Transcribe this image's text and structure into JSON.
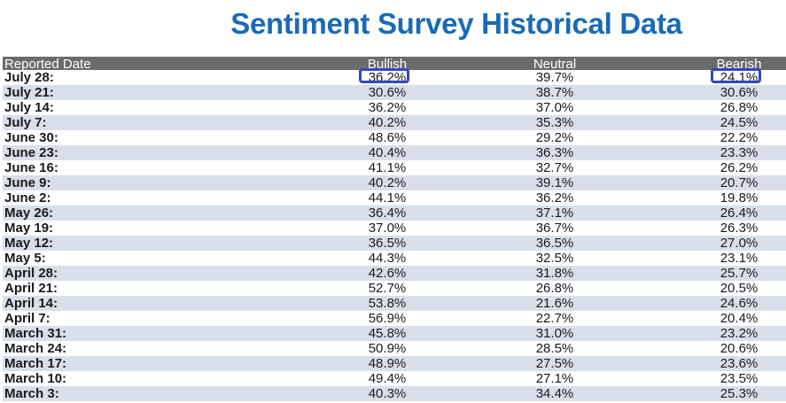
{
  "chart_data": {
    "type": "table",
    "title": "Sentiment Survey Historical Data",
    "columns": [
      "Reported Date",
      "Bullish",
      "Neutral",
      "Bearish"
    ],
    "rows": [
      {
        "date": "July 28:",
        "bullish": "36.2%",
        "neutral": "39.7%",
        "bearish": "24.1%"
      },
      {
        "date": "July 21:",
        "bullish": "30.6%",
        "neutral": "38.7%",
        "bearish": "30.6%"
      },
      {
        "date": "July 14:",
        "bullish": "36.2%",
        "neutral": "37.0%",
        "bearish": "26.8%"
      },
      {
        "date": "July 7:",
        "bullish": "40.2%",
        "neutral": "35.3%",
        "bearish": "24.5%"
      },
      {
        "date": "June 30:",
        "bullish": "48.6%",
        "neutral": "29.2%",
        "bearish": "22.2%"
      },
      {
        "date": "June 23:",
        "bullish": "40.4%",
        "neutral": "36.3%",
        "bearish": "23.3%"
      },
      {
        "date": "June 16:",
        "bullish": "41.1%",
        "neutral": "32.7%",
        "bearish": "26.2%"
      },
      {
        "date": "June 9:",
        "bullish": "40.2%",
        "neutral": "39.1%",
        "bearish": "20.7%"
      },
      {
        "date": "June 2:",
        "bullish": "44.1%",
        "neutral": "36.2%",
        "bearish": "19.8%"
      },
      {
        "date": "May 26:",
        "bullish": "36.4%",
        "neutral": "37.1%",
        "bearish": "26.4%"
      },
      {
        "date": "May 19:",
        "bullish": "37.0%",
        "neutral": "36.7%",
        "bearish": "26.3%"
      },
      {
        "date": "May 12:",
        "bullish": "36.5%",
        "neutral": "36.5%",
        "bearish": "27.0%"
      },
      {
        "date": "May 5:",
        "bullish": "44.3%",
        "neutral": "32.5%",
        "bearish": "23.1%"
      },
      {
        "date": "April 28:",
        "bullish": "42.6%",
        "neutral": "31.8%",
        "bearish": "25.7%"
      },
      {
        "date": "April 21:",
        "bullish": "52.7%",
        "neutral": "26.8%",
        "bearish": "20.5%"
      },
      {
        "date": "April 14:",
        "bullish": "53.8%",
        "neutral": "21.6%",
        "bearish": "24.6%"
      },
      {
        "date": "April 7:",
        "bullish": "56.9%",
        "neutral": "22.7%",
        "bearish": "20.4%"
      },
      {
        "date": "March 31:",
        "bullish": "45.8%",
        "neutral": "31.0%",
        "bearish": "23.2%"
      },
      {
        "date": "March 24:",
        "bullish": "50.9%",
        "neutral": "28.5%",
        "bearish": "20.6%"
      },
      {
        "date": "March 17:",
        "bullish": "48.9%",
        "neutral": "27.5%",
        "bearish": "23.6%"
      },
      {
        "date": "March 10:",
        "bullish": "49.4%",
        "neutral": "27.1%",
        "bearish": "23.5%"
      },
      {
        "date": "March 3:",
        "bullish": "40.3%",
        "neutral": "34.4%",
        "bearish": "25.3%"
      }
    ],
    "highlighted_cells": [
      {
        "row": 0,
        "column": "Bullish"
      },
      {
        "row": 0,
        "column": "Bearish"
      }
    ],
    "colors": {
      "title": "#1a6ab5",
      "header_bg": "#6b6b6b",
      "alt_row_bg": "#d9dfea",
      "highlight_border": "#3048c6"
    }
  }
}
